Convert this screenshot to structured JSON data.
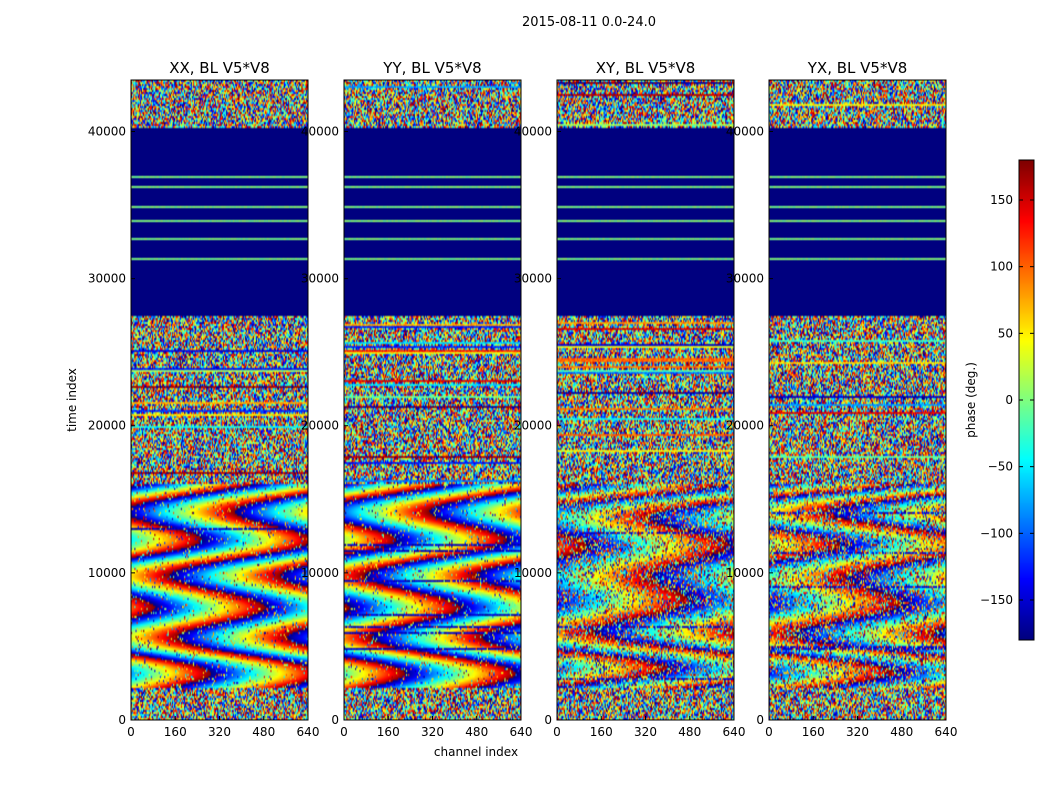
{
  "chart_data": {
    "type": "heatmap",
    "suptitle": "2015-08-11 0.0-24.0",
    "panels": [
      {
        "title": "XX, BL V5*V8",
        "pol": "XX"
      },
      {
        "title": "YY, BL V5*V8",
        "pol": "YY"
      },
      {
        "title": "XY, BL V5*V8",
        "pol": "XY"
      },
      {
        "title": "YX, BL V5*V8",
        "pol": "YX"
      }
    ],
    "xlabel": "channel index",
    "ylabel": "time index",
    "xlim": [
      0,
      640
    ],
    "ylim": [
      0,
      43500
    ],
    "xticks": [
      0,
      160,
      320,
      480,
      640
    ],
    "yticks": [
      0,
      10000,
      20000,
      30000,
      40000
    ],
    "colorbar": {
      "label": "phase (deg.)",
      "range": [
        -180,
        180
      ],
      "ticks": [
        -150,
        -100,
        -50,
        0,
        50,
        100,
        150
      ],
      "tick_labels": [
        "−150",
        "−100",
        "−50",
        "0",
        "50",
        "100",
        "150"
      ]
    },
    "colormap": [
      "#00007f",
      "#0000ff",
      "#007fff",
      "#00ffff",
      "#7fff7f",
      "#ffff00",
      "#ff7f00",
      "#ff0000",
      "#7f0000"
    ],
    "features": {
      "flagged_time_range": [
        27500,
        40200
      ],
      "noise_time_ranges": [
        [
          0,
          2200
        ],
        [
          16000,
          27500
        ],
        [
          40200,
          43500
        ]
      ],
      "coherent_time_range": [
        2200,
        16000
      ]
    }
  }
}
